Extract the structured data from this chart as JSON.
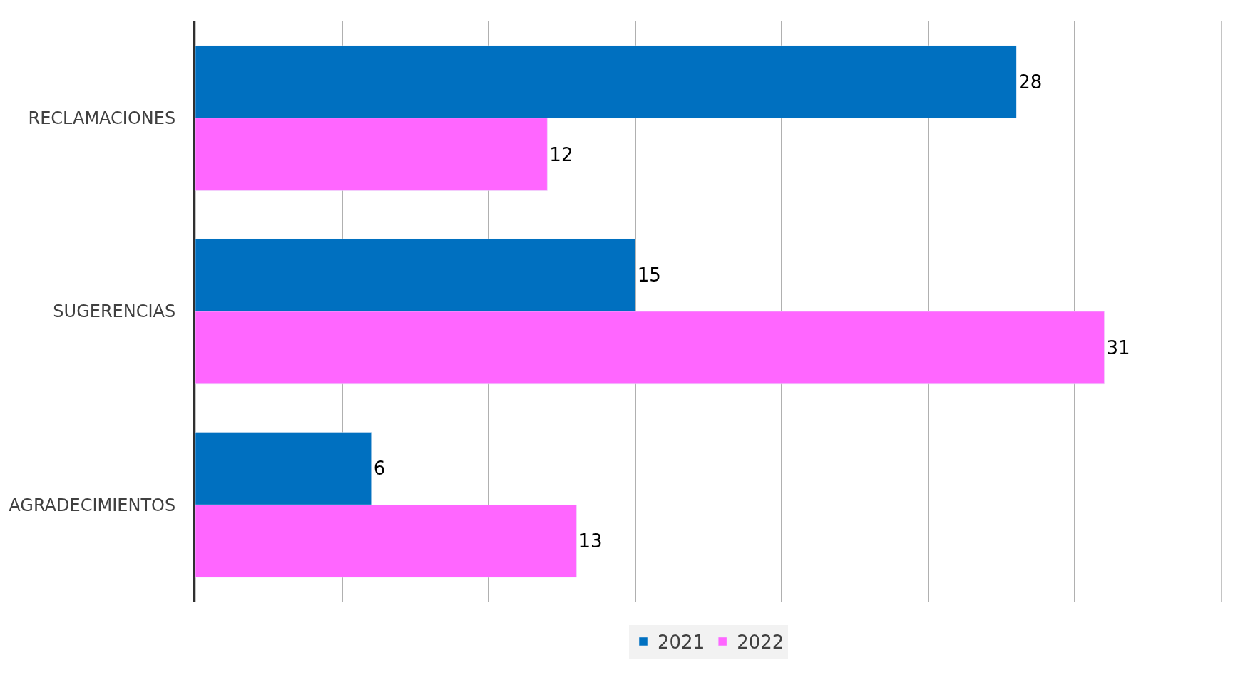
{
  "chart_data": {
    "type": "bar",
    "orientation": "horizontal",
    "categories": [
      "RECLAMACIONES",
      "SUGERENCIAS",
      "AGRADECIMIENTOS"
    ],
    "series": [
      {
        "name": "2021",
        "color": "#0070c0",
        "values": [
          28,
          15,
          6
        ]
      },
      {
        "name": "2022",
        "color": "#ff66ff",
        "values": [
          12,
          31,
          13
        ]
      }
    ],
    "xlim": [
      0,
      35
    ],
    "xticks": [
      {
        "value": 0,
        "label": null
      },
      {
        "value": 5,
        "label": null
      },
      {
        "value": 10,
        "label": null
      },
      {
        "value": 15,
        "label": null
      },
      {
        "value": 20,
        "label": null
      },
      {
        "value": 25,
        "label": null
      },
      {
        "value": 30,
        "label": null
      },
      {
        "value": 35,
        "label": null
      }
    ],
    "tick_labels": "y",
    "grid": "x",
    "legend": "bottom",
    "data_labels": true
  }
}
